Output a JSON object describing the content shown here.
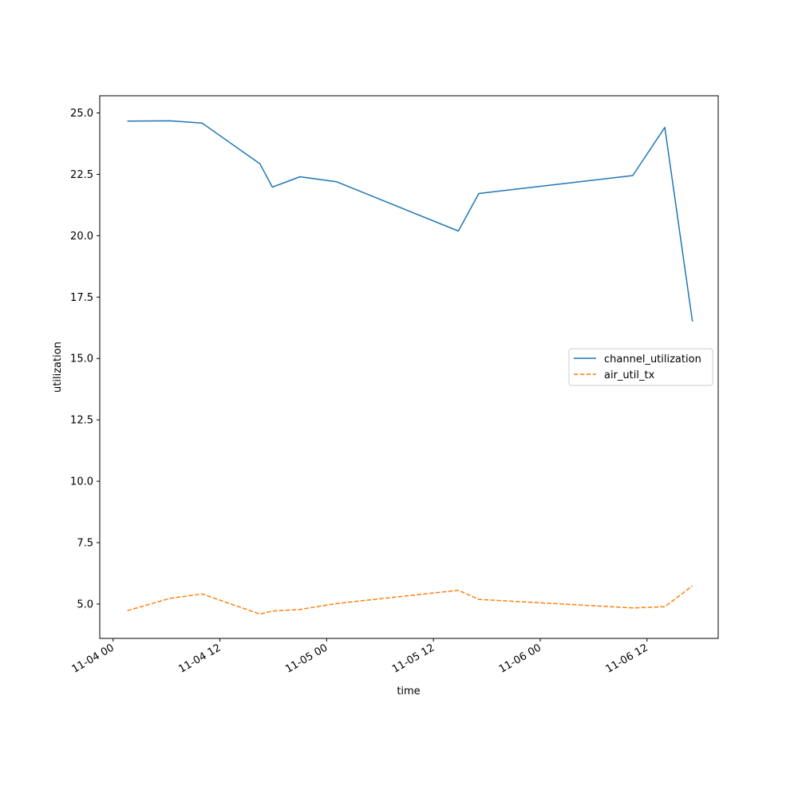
{
  "chart_data": {
    "type": "line",
    "title": "",
    "xlabel": "time",
    "ylabel": "utilization",
    "x_tick_labels": [
      "11-04 00",
      "11-04 12",
      "11-05 00",
      "11-05 12",
      "11-06 00",
      "11-06 12"
    ],
    "y_tick_labels": [
      "5.0",
      "7.5",
      "10.0",
      "12.5",
      "15.0",
      "17.5",
      "20.0",
      "22.5",
      "25.0"
    ],
    "x_ticks_hours": [
      0,
      12,
      24,
      36,
      48,
      60
    ],
    "y_ticks": [
      5.0,
      7.5,
      10.0,
      12.5,
      15.0,
      17.5,
      20.0,
      22.5,
      25.0
    ],
    "xlim_hours": [
      -1.5,
      68.0
    ],
    "ylim": [
      3.6,
      25.7
    ],
    "grid": false,
    "legend_position": "right",
    "x_hours": [
      1.6,
      6.4,
      10.0,
      16.5,
      17.9,
      21.0,
      25.1,
      38.8,
      41.1,
      58.4,
      62.0,
      65.1
    ],
    "series": [
      {
        "name": "channel_utilization",
        "color": "#1f77b4",
        "dash": "solid",
        "values": [
          24.67,
          24.68,
          24.59,
          22.93,
          21.98,
          22.4,
          22.2,
          20.19,
          21.72,
          22.45,
          24.41,
          16.51
        ]
      },
      {
        "name": "air_util_tx",
        "color": "#ff7f0e",
        "dash": "dashed",
        "values": [
          4.73,
          5.23,
          5.41,
          4.59,
          4.71,
          4.78,
          5.02,
          5.56,
          5.19,
          4.84,
          4.89,
          5.74
        ]
      }
    ]
  }
}
